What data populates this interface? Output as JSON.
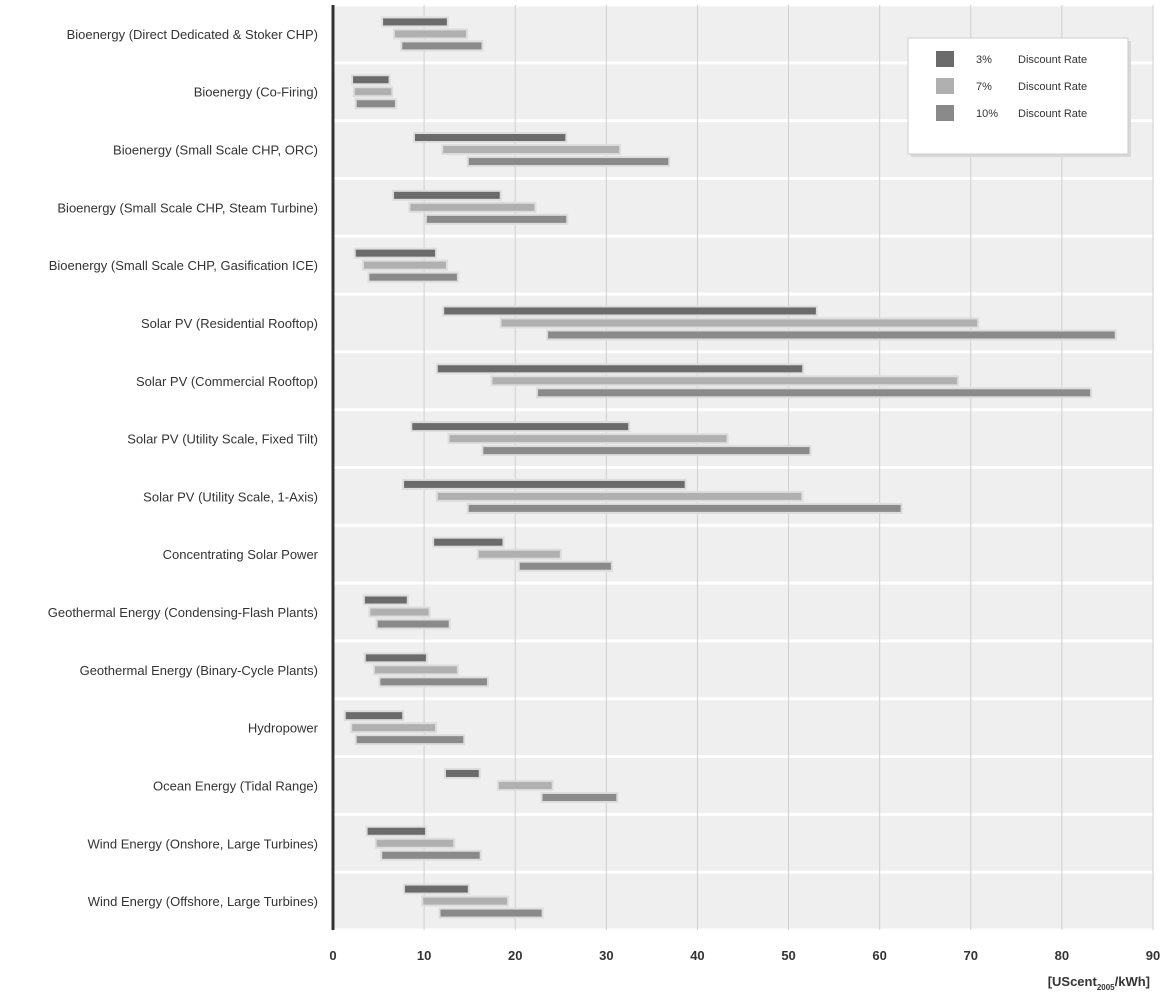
{
  "chart_data": {
    "type": "bar",
    "orientation": "horizontal-range",
    "x_unit_label": "[UScent2005/kWh]",
    "x_unit_parts": {
      "main": "[UScent",
      "subscript": "2005",
      "suffix": "/kWh]"
    },
    "xlim": [
      0,
      90
    ],
    "xticks": [
      "0",
      "10",
      "20",
      "30",
      "40",
      "50",
      "60",
      "70",
      "80",
      "90"
    ],
    "grid": true,
    "legend_position": "top-right",
    "categories": [
      "Bioenergy (Direct Dedicated & Stoker CHP)",
      "Bioenergy (Co-Firing)",
      "Bioenergy (Small Scale CHP, ORC)",
      "Bioenergy (Small Scale CHP, Steam Turbine)",
      "Bioenergy (Small Scale CHP, Gasification ICE)",
      "Solar PV (Residential Rooftop)",
      "Solar PV (Commercial Rooftop)",
      "Solar PV (Utility Scale, Fixed Tilt)",
      "Solar PV (Utility Scale, 1-Axis)",
      "Concentrating Solar Power",
      "Geothermal Energy (Condensing-Flash Plants)",
      "Geothermal Energy (Binary-Cycle Plants)",
      "Hydropower",
      "Ocean Energy (Tidal Range)",
      "Wind Energy (Onshore, Large Turbines)",
      "Wind Energy (Offshore, Large Turbines)"
    ],
    "series": [
      {
        "name": "3%",
        "legend_label": "Discount Rate",
        "color": "#6b6b6b",
        "ranges": [
          [
            5.5,
            12.5
          ],
          [
            2.2,
            6.1
          ],
          [
            9.0,
            25.5
          ],
          [
            6.7,
            18.3
          ],
          [
            2.5,
            11.2
          ],
          [
            12.2,
            53.0
          ],
          [
            11.5,
            51.5
          ],
          [
            8.7,
            32.4
          ],
          [
            7.8,
            38.6
          ],
          [
            11.1,
            18.6
          ],
          [
            3.5,
            8.1
          ],
          [
            3.6,
            10.2
          ],
          [
            1.4,
            7.6
          ],
          [
            12.4,
            16.0
          ],
          [
            3.8,
            10.1
          ],
          [
            7.9,
            14.8
          ]
        ]
      },
      {
        "name": "7%",
        "legend_label": "Discount Rate",
        "color": "#b0b0b0",
        "ranges": [
          [
            6.8,
            14.6
          ],
          [
            2.4,
            6.4
          ],
          [
            12.1,
            31.4
          ],
          [
            8.5,
            22.1
          ],
          [
            3.4,
            12.4
          ],
          [
            18.5,
            70.7
          ],
          [
            17.5,
            68.5
          ],
          [
            12.8,
            43.2
          ],
          [
            11.5,
            51.4
          ],
          [
            16.0,
            24.9
          ],
          [
            4.1,
            10.5
          ],
          [
            4.6,
            13.6
          ],
          [
            2.1,
            11.2
          ],
          [
            18.2,
            24.0
          ],
          [
            4.8,
            13.2
          ],
          [
            9.9,
            19.1
          ]
        ]
      },
      {
        "name": "10%",
        "legend_label": "Discount Rate",
        "color": "#8a8a8a",
        "ranges": [
          [
            7.6,
            16.3
          ],
          [
            2.6,
            6.8
          ],
          [
            14.9,
            36.8
          ],
          [
            10.3,
            25.6
          ],
          [
            4.0,
            13.6
          ],
          [
            23.6,
            85.8
          ],
          [
            22.5,
            83.1
          ],
          [
            16.5,
            52.3
          ],
          [
            14.9,
            62.3
          ],
          [
            20.5,
            30.5
          ],
          [
            4.9,
            12.7
          ],
          [
            5.2,
            16.9
          ],
          [
            2.6,
            14.3
          ],
          [
            23.0,
            31.1
          ],
          [
            5.4,
            16.1
          ],
          [
            11.8,
            22.9
          ]
        ]
      }
    ]
  }
}
